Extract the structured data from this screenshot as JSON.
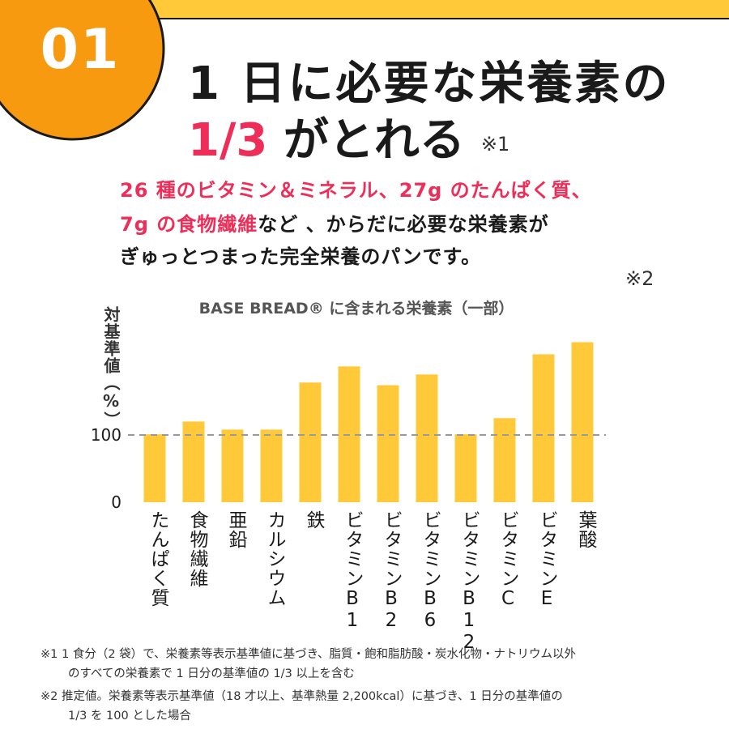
{
  "badge": {
    "number": "01"
  },
  "headline": {
    "line1": "1 日に必要な栄養素の",
    "line2_accent": "1/3",
    "line2_rest": " がとれる",
    "note": "※1"
  },
  "intro": {
    "line1": "26 種のビタミン＆ミネラル、27g のたんぱく質、",
    "line2_highlight": "7g の食物繊維",
    "line2_rest": "など 、からだに必要な栄養素が",
    "line3": "ぎゅっとつまった完全栄養のパンです。"
  },
  "chart_note": "※2",
  "colors": {
    "accent": "#ee2e58",
    "bar": "#ffc93a",
    "badge": "#f79a0f",
    "band": "#ffc93a"
  },
  "chart_data": {
    "type": "bar",
    "title": "BASE BREAD® に含まれる栄養素（一部）",
    "ylabel": "対基準値（%）",
    "yticks": [
      "100",
      "0"
    ],
    "reference_line": 100,
    "ylim": [
      0,
      240
    ],
    "grid": false,
    "categories": [
      "たんぱく質",
      "食物繊維",
      "亜鉛",
      "カルシウム",
      "鉄",
      "ビタミンB1",
      "ビタミンB2",
      "ビタミンB6",
      "ビタミンB12",
      "ビタミンC",
      "ビタミンE",
      "葉酸"
    ],
    "values": [
      101,
      120,
      108,
      108,
      178,
      202,
      174,
      190,
      101,
      125,
      220,
      238
    ]
  },
  "footnotes": {
    "n1_line1": "※1 1 食分（2 袋）で、栄養素等表示基準値に基づき、脂質・飽和脂肪酸・炭水化物・ナトリウム以外",
    "n1_line2": "のすべての栄養素で 1 日分の基準値の 1/3 以上を含む",
    "n2_line1": "※2  推定値。栄養素等表示基準値（18 才以上、基準熱量 2,200kcal）に基づき、1 日分の基準値の",
    "n2_line2": "1/3 を 100 とした場合"
  }
}
